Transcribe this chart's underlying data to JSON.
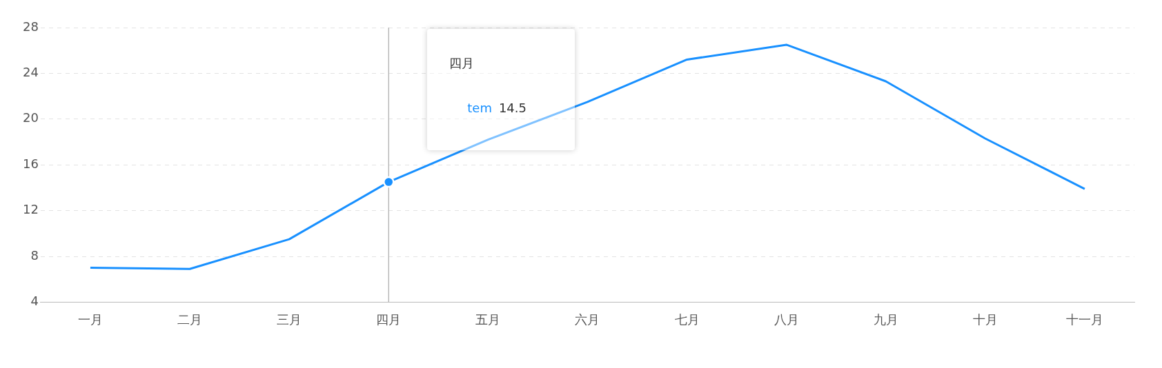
{
  "chart_data": {
    "type": "line",
    "categories": [
      "一月",
      "二月",
      "三月",
      "四月",
      "五月",
      "六月",
      "七月",
      "八月",
      "九月",
      "十月",
      "十一月"
    ],
    "series": [
      {
        "name": "tem",
        "color": "#1890ff",
        "values": [
          7.0,
          6.9,
          9.5,
          14.5,
          18.2,
          21.5,
          25.2,
          26.5,
          23.3,
          18.3,
          13.9
        ]
      }
    ],
    "ylim": [
      4,
      28
    ],
    "yticks": [
      4,
      8,
      12,
      16,
      20,
      24,
      28
    ],
    "grid": "y",
    "legend": false,
    "marker": "none",
    "ref_lines": [
      {
        "axis": "x",
        "value": "四月",
        "color": "#aaaaaa"
      }
    ],
    "annotations": [
      "四月",
      "14.5"
    ]
  }
}
